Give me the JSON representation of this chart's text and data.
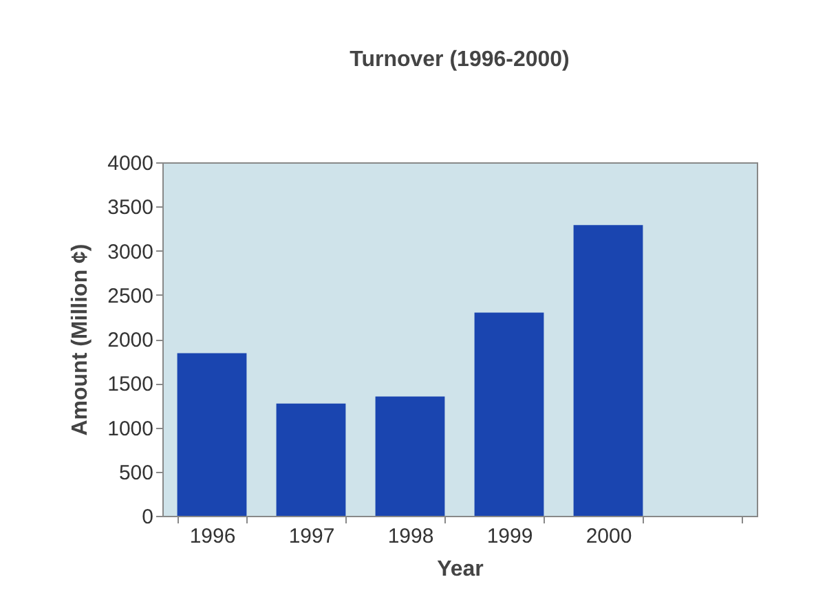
{
  "chart_data": {
    "type": "bar",
    "title": "Turnover (1996-2000)",
    "xlabel": "Year",
    "ylabel": "Amount (Million ¢)",
    "categories": [
      "1996",
      "1997",
      "1998",
      "1999",
      "2000",
      null
    ],
    "values": [
      1840,
      1270,
      1350,
      2300,
      3290,
      null
    ],
    "color": "#1a45b0",
    "ylim": [
      0,
      4000
    ],
    "yticks": [
      0,
      500,
      1000,
      1500,
      2000,
      2500,
      3000,
      3500,
      4000
    ],
    "grid": false
  }
}
